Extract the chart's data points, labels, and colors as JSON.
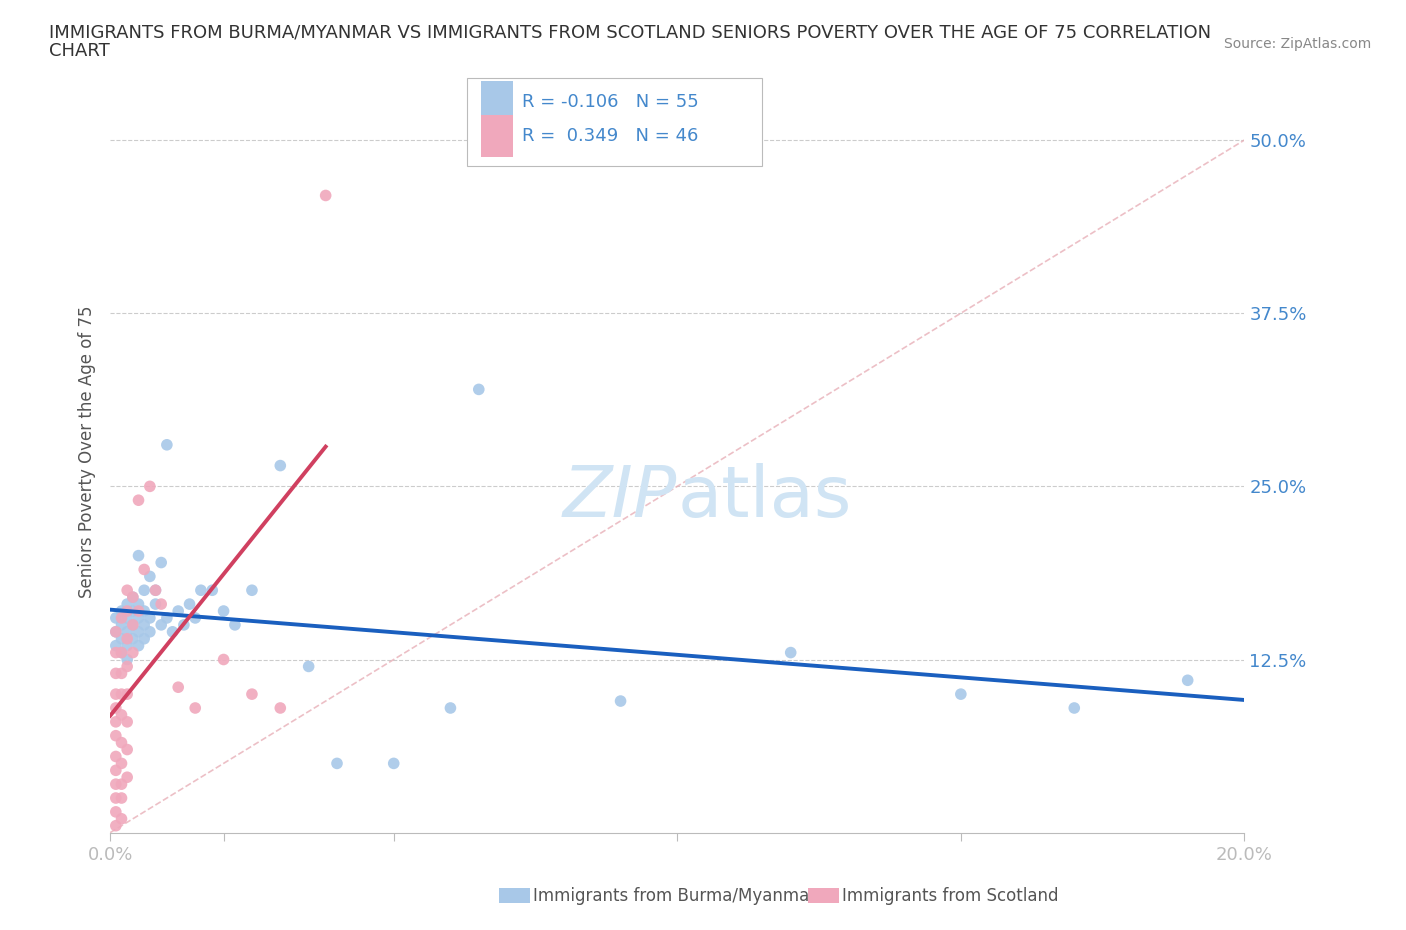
{
  "title_line1": "IMMIGRANTS FROM BURMA/MYANMAR VS IMMIGRANTS FROM SCOTLAND SENIORS POVERTY OVER THE AGE OF 75 CORRELATION",
  "title_line2": "CHART",
  "source_text": "Source: ZipAtlas.com",
  "ylabel": "Seniors Poverty Over the Age of 75",
  "xlim": [
    0.0,
    0.2
  ],
  "ylim": [
    0.0,
    0.55
  ],
  "xticks": [
    0.0,
    0.02,
    0.05,
    0.1,
    0.15,
    0.2
  ],
  "xticklabels": [
    "0.0%",
    "",
    "",
    "",
    "",
    "20.0%"
  ],
  "yticks": [
    0.125,
    0.25,
    0.375,
    0.5
  ],
  "yticklabels": [
    "12.5%",
    "25.0%",
    "37.5%",
    "50.0%"
  ],
  "grid_color": "#cccccc",
  "background_color": "#ffffff",
  "series1_label": "Immigrants from Burma/Myanmar",
  "series2_label": "Immigrants from Scotland",
  "dot_color1": "#a8c8e8",
  "dot_color2": "#f0a8bc",
  "line_color1": "#1a5fbf",
  "line_color2": "#d04060",
  "diag_color": "#e8b0b8",
  "title_color": "#333333",
  "axis_tick_color": "#4488cc",
  "legend_text_color": "#4488cc",
  "watermark_color": "#d0e4f4",
  "Burma_x": [
    0.001,
    0.001,
    0.001,
    0.002,
    0.002,
    0.002,
    0.002,
    0.003,
    0.003,
    0.003,
    0.003,
    0.003,
    0.004,
    0.004,
    0.004,
    0.004,
    0.005,
    0.005,
    0.005,
    0.005,
    0.005,
    0.006,
    0.006,
    0.006,
    0.006,
    0.007,
    0.007,
    0.007,
    0.008,
    0.008,
    0.009,
    0.009,
    0.01,
    0.01,
    0.011,
    0.012,
    0.013,
    0.014,
    0.015,
    0.016,
    0.018,
    0.02,
    0.022,
    0.025,
    0.03,
    0.035,
    0.04,
    0.05,
    0.06,
    0.065,
    0.09,
    0.12,
    0.15,
    0.17,
    0.19
  ],
  "Burma_y": [
    0.155,
    0.145,
    0.135,
    0.15,
    0.14,
    0.16,
    0.13,
    0.155,
    0.145,
    0.135,
    0.165,
    0.125,
    0.16,
    0.15,
    0.14,
    0.17,
    0.155,
    0.165,
    0.145,
    0.135,
    0.2,
    0.15,
    0.16,
    0.14,
    0.175,
    0.185,
    0.155,
    0.145,
    0.165,
    0.175,
    0.195,
    0.15,
    0.155,
    0.28,
    0.145,
    0.16,
    0.15,
    0.165,
    0.155,
    0.175,
    0.175,
    0.16,
    0.15,
    0.175,
    0.265,
    0.12,
    0.05,
    0.05,
    0.09,
    0.32,
    0.095,
    0.13,
    0.1,
    0.09,
    0.11
  ],
  "Scotland_x": [
    0.001,
    0.001,
    0.001,
    0.001,
    0.001,
    0.001,
    0.001,
    0.001,
    0.001,
    0.001,
    0.001,
    0.001,
    0.001,
    0.002,
    0.002,
    0.002,
    0.002,
    0.002,
    0.002,
    0.002,
    0.002,
    0.002,
    0.002,
    0.003,
    0.003,
    0.003,
    0.003,
    0.003,
    0.003,
    0.003,
    0.003,
    0.004,
    0.004,
    0.004,
    0.005,
    0.005,
    0.006,
    0.007,
    0.008,
    0.009,
    0.012,
    0.015,
    0.02,
    0.025,
    0.03,
    0.038
  ],
  "Scotland_y": [
    0.145,
    0.13,
    0.115,
    0.1,
    0.09,
    0.08,
    0.07,
    0.055,
    0.045,
    0.035,
    0.025,
    0.015,
    0.005,
    0.155,
    0.13,
    0.115,
    0.1,
    0.085,
    0.065,
    0.05,
    0.035,
    0.025,
    0.01,
    0.175,
    0.16,
    0.14,
    0.12,
    0.1,
    0.08,
    0.06,
    0.04,
    0.17,
    0.15,
    0.13,
    0.24,
    0.16,
    0.19,
    0.25,
    0.175,
    0.165,
    0.105,
    0.09,
    0.125,
    0.1,
    0.09,
    0.46
  ]
}
